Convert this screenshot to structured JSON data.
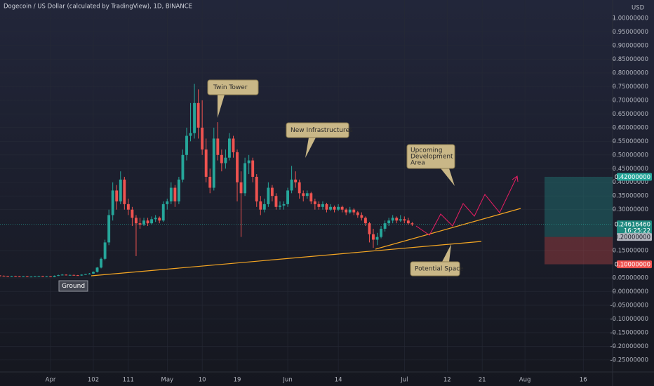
{
  "chart_data": {
    "type": "candlestick",
    "title": "Dogecoin / US Dollar (calculated by TradingView), 1D, BINANCE",
    "currency": "USD",
    "up_color": "#26a69a",
    "down_color": "#ef5350",
    "xlim": [
      78,
      235
    ],
    "ylim": [
      -0.294,
      1.067
    ],
    "xticks": [
      {
        "value": 91,
        "label": "Apr"
      },
      102,
      111,
      {
        "value": 121,
        "label": "May"
      },
      {
        "value": 130,
        "label": "10"
      },
      {
        "value": 139,
        "label": "19"
      },
      {
        "value": 152,
        "label": "Jun"
      },
      {
        "value": 165,
        "label": "14"
      },
      {
        "value": 182,
        "label": "Jul"
      },
      {
        "value": 193,
        "label": "12"
      },
      {
        "value": 202,
        "label": "21"
      },
      {
        "value": 213,
        "label": "Aug"
      },
      {
        "value": 228,
        "label": "16"
      }
    ],
    "yticks": [
      {
        "value": 1,
        "label": "1.00000000"
      },
      {
        "value": 0.95,
        "label": "0.95000000"
      },
      {
        "value": 0.9,
        "label": "0.90000000"
      },
      {
        "value": 0.85,
        "label": "0.85000000"
      },
      {
        "value": 0.8,
        "label": "0.80000000"
      },
      {
        "value": 0.75,
        "label": "0.75000000"
      },
      {
        "value": 0.7,
        "label": "0.70000000"
      },
      {
        "value": 0.65,
        "label": "0.65000000"
      },
      {
        "value": 0.6,
        "label": "0.60000000"
      },
      {
        "value": 0.55,
        "label": "0.55000000"
      },
      {
        "value": 0.5,
        "label": "0.50000000"
      },
      {
        "value": 0.45,
        "label": "0.45000000"
      },
      {
        "value": 0.4,
        "label": "0.40000000"
      },
      {
        "value": 0.35,
        "label": "0.35000000"
      },
      {
        "value": 0.3,
        "label": "0.30000000"
      },
      {
        "value": 0.15,
        "label": "0.15000000"
      },
      {
        "value": 0.05,
        "label": "0.05000000"
      },
      {
        "value": 0,
        "label": "0.00000000"
      },
      {
        "value": -0.05,
        "label": "-0.05000000"
      },
      {
        "value": -0.1,
        "label": "-0.10000000"
      },
      {
        "value": -0.15,
        "label": "-0.15000000"
      },
      {
        "value": -0.2,
        "label": "-0.20000000"
      },
      {
        "value": -0.25,
        "label": "-0.25000000"
      }
    ],
    "price_tags": [
      {
        "value": 0.42,
        "label": "0.42000000",
        "color": "#26a69a"
      },
      {
        "value": 0.2461646,
        "label": "0.24616460",
        "sublabel": "16:25:22",
        "color": "#1f8a80"
      },
      {
        "value": 0.2,
        "label": "0.20000000",
        "color": "#b2b5be"
      },
      {
        "value": 0.1,
        "label": "0.10000000",
        "color": "#ef5350"
      }
    ],
    "annotations": {
      "twin_tower": "Twin Tower",
      "new_infra": "New Infrastructures",
      "upcoming": [
        "Upcoming",
        "Development",
        "Area"
      ],
      "potential": "Potential Space",
      "ground": "Ground"
    },
    "x": [
      78,
      79,
      80,
      81,
      82,
      83,
      84,
      85,
      86,
      87,
      88,
      89,
      90,
      91,
      92,
      93,
      94,
      95,
      96,
      97,
      98,
      99,
      100,
      101,
      102,
      103,
      104,
      105,
      106,
      107,
      108,
      109,
      110,
      111,
      112,
      113,
      114,
      115,
      116,
      117,
      118,
      119,
      120,
      121,
      122,
      123,
      124,
      125,
      126,
      127,
      128,
      129,
      130,
      131,
      132,
      133,
      134,
      135,
      136,
      137,
      138,
      139,
      140,
      141,
      142,
      143,
      144,
      145,
      146,
      147,
      148,
      149,
      150,
      151,
      152,
      153,
      154,
      155,
      156,
      157,
      158,
      159,
      160,
      161,
      162,
      163,
      164,
      165,
      166,
      167,
      168,
      169,
      170,
      171,
      172,
      173,
      174,
      175,
      176,
      177,
      178,
      179,
      180,
      181,
      182,
      183,
      184
    ],
    "ohlc": [
      [
        0.059,
        0.06,
        0.056,
        0.058
      ],
      [
        0.058,
        0.059,
        0.056,
        0.057
      ],
      [
        0.057,
        0.058,
        0.055,
        0.056
      ],
      [
        0.056,
        0.058,
        0.055,
        0.057
      ],
      [
        0.057,
        0.058,
        0.055,
        0.056
      ],
      [
        0.056,
        0.057,
        0.054,
        0.055
      ],
      [
        0.055,
        0.057,
        0.054,
        0.056
      ],
      [
        0.056,
        0.057,
        0.053,
        0.054
      ],
      [
        0.054,
        0.056,
        0.053,
        0.055
      ],
      [
        0.055,
        0.057,
        0.054,
        0.056
      ],
      [
        0.056,
        0.058,
        0.055,
        0.057
      ],
      [
        0.057,
        0.058,
        0.054,
        0.055
      ],
      [
        0.055,
        0.057,
        0.054,
        0.056
      ],
      [
        0.056,
        0.057,
        0.053,
        0.054
      ],
      [
        0.054,
        0.059,
        0.053,
        0.058
      ],
      [
        0.058,
        0.062,
        0.057,
        0.06
      ],
      [
        0.06,
        0.064,
        0.059,
        0.062
      ],
      [
        0.062,
        0.063,
        0.059,
        0.06
      ],
      [
        0.06,
        0.062,
        0.059,
        0.061
      ],
      [
        0.061,
        0.062,
        0.059,
        0.06
      ],
      [
        0.06,
        0.061,
        0.058,
        0.059
      ],
      [
        0.059,
        0.063,
        0.058,
        0.062
      ],
      [
        0.062,
        0.065,
        0.061,
        0.064
      ],
      [
        0.064,
        0.068,
        0.063,
        0.066
      ],
      [
        0.066,
        0.074,
        0.065,
        0.072
      ],
      [
        0.072,
        0.09,
        0.07,
        0.088
      ],
      [
        0.088,
        0.125,
        0.085,
        0.12
      ],
      [
        0.12,
        0.19,
        0.115,
        0.18
      ],
      [
        0.18,
        0.3,
        0.17,
        0.28
      ],
      [
        0.28,
        0.4,
        0.26,
        0.37
      ],
      [
        0.37,
        0.39,
        0.3,
        0.33
      ],
      [
        0.33,
        0.44,
        0.32,
        0.41
      ],
      [
        0.41,
        0.42,
        0.3,
        0.32
      ],
      [
        0.32,
        0.34,
        0.28,
        0.3
      ],
      [
        0.3,
        0.31,
        0.24,
        0.27
      ],
      [
        0.27,
        0.28,
        0.13,
        0.25
      ],
      [
        0.25,
        0.27,
        0.23,
        0.245
      ],
      [
        0.245,
        0.27,
        0.24,
        0.26
      ],
      [
        0.26,
        0.27,
        0.24,
        0.25
      ],
      [
        0.25,
        0.275,
        0.245,
        0.265
      ],
      [
        0.265,
        0.28,
        0.255,
        0.27
      ],
      [
        0.27,
        0.275,
        0.25,
        0.26
      ],
      [
        0.26,
        0.33,
        0.255,
        0.32
      ],
      [
        0.32,
        0.34,
        0.3,
        0.33
      ],
      [
        0.33,
        0.4,
        0.32,
        0.38
      ],
      [
        0.38,
        0.39,
        0.31,
        0.33
      ],
      [
        0.33,
        0.42,
        0.32,
        0.41
      ],
      [
        0.41,
        0.52,
        0.4,
        0.5
      ],
      [
        0.5,
        0.6,
        0.48,
        0.57
      ],
      [
        0.57,
        0.69,
        0.55,
        0.58
      ],
      [
        0.58,
        0.76,
        0.56,
        0.69
      ],
      [
        0.69,
        0.74,
        0.56,
        0.6
      ],
      [
        0.6,
        0.7,
        0.5,
        0.52
      ],
      [
        0.52,
        0.56,
        0.4,
        0.42
      ],
      [
        0.42,
        0.45,
        0.36,
        0.38
      ],
      [
        0.38,
        0.6,
        0.37,
        0.56
      ],
      [
        0.56,
        0.62,
        0.48,
        0.5
      ],
      [
        0.5,
        0.52,
        0.44,
        0.47
      ],
      [
        0.47,
        0.52,
        0.45,
        0.49
      ],
      [
        0.49,
        0.58,
        0.48,
        0.56
      ],
      [
        0.56,
        0.57,
        0.49,
        0.51
      ],
      [
        0.51,
        0.52,
        0.33,
        0.4
      ],
      [
        0.4,
        0.44,
        0.2,
        0.36
      ],
      [
        0.36,
        0.49,
        0.35,
        0.47
      ],
      [
        0.47,
        0.5,
        0.43,
        0.48
      ],
      [
        0.48,
        0.49,
        0.4,
        0.42
      ],
      [
        0.42,
        0.43,
        0.31,
        0.33
      ],
      [
        0.33,
        0.35,
        0.28,
        0.3
      ],
      [
        0.3,
        0.34,
        0.29,
        0.32
      ],
      [
        0.32,
        0.4,
        0.31,
        0.38
      ],
      [
        0.38,
        0.39,
        0.33,
        0.35
      ],
      [
        0.35,
        0.36,
        0.3,
        0.31
      ],
      [
        0.31,
        0.33,
        0.3,
        0.315
      ],
      [
        0.315,
        0.33,
        0.3,
        0.32
      ],
      [
        0.32,
        0.38,
        0.31,
        0.37
      ],
      [
        0.37,
        0.46,
        0.36,
        0.41
      ],
      [
        0.41,
        0.44,
        0.38,
        0.4
      ],
      [
        0.4,
        0.41,
        0.34,
        0.36
      ],
      [
        0.36,
        0.37,
        0.33,
        0.35
      ],
      [
        0.35,
        0.37,
        0.34,
        0.36
      ],
      [
        0.36,
        0.365,
        0.32,
        0.33
      ],
      [
        0.33,
        0.34,
        0.3,
        0.32
      ],
      [
        0.32,
        0.33,
        0.3,
        0.31
      ],
      [
        0.31,
        0.33,
        0.3,
        0.32
      ],
      [
        0.32,
        0.325,
        0.29,
        0.3
      ],
      [
        0.3,
        0.32,
        0.295,
        0.31
      ],
      [
        0.31,
        0.315,
        0.29,
        0.3
      ],
      [
        0.3,
        0.32,
        0.295,
        0.31
      ],
      [
        0.31,
        0.315,
        0.29,
        0.3
      ],
      [
        0.3,
        0.305,
        0.28,
        0.29
      ],
      [
        0.29,
        0.31,
        0.285,
        0.3
      ],
      [
        0.3,
        0.305,
        0.28,
        0.29
      ],
      [
        0.29,
        0.295,
        0.27,
        0.28
      ],
      [
        0.28,
        0.29,
        0.26,
        0.27
      ],
      [
        0.27,
        0.275,
        0.24,
        0.25
      ],
      [
        0.25,
        0.255,
        0.18,
        0.21
      ],
      [
        0.21,
        0.23,
        0.16,
        0.19
      ],
      [
        0.19,
        0.215,
        0.17,
        0.2
      ],
      [
        0.2,
        0.24,
        0.195,
        0.23
      ],
      [
        0.23,
        0.26,
        0.22,
        0.25
      ],
      [
        0.25,
        0.27,
        0.24,
        0.26
      ],
      [
        0.26,
        0.28,
        0.25,
        0.27
      ],
      [
        0.27,
        0.275,
        0.25,
        0.26
      ],
      [
        0.26,
        0.28,
        0.255,
        0.265
      ],
      [
        0.265,
        0.275,
        0.25,
        0.26
      ],
      [
        0.26,
        0.27,
        0.245,
        0.25
      ],
      [
        0.25,
        0.255,
        0.24,
        0.246
      ]
    ]
  }
}
